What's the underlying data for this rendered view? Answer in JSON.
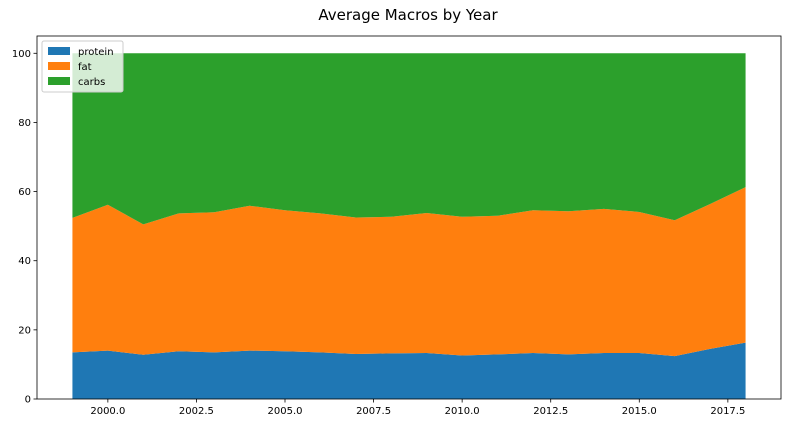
{
  "chart_data": {
    "type": "area",
    "stacked": true,
    "title": "Average Macros by Year",
    "xlabel": "",
    "ylabel": "",
    "xlim": [
      1998,
      2019
    ],
    "ylim": [
      0,
      105
    ],
    "xticks": [
      2000.0,
      2002.5,
      2005.0,
      2007.5,
      2010.0,
      2012.5,
      2015.0,
      2017.5
    ],
    "xtick_labels": [
      "2000.0",
      "2002.5",
      "2005.0",
      "2007.5",
      "2010.0",
      "2012.5",
      "2015.0",
      "2017.5"
    ],
    "yticks": [
      0,
      20,
      40,
      60,
      80,
      100
    ],
    "ytick_labels": [
      "0",
      "20",
      "40",
      "60",
      "80",
      "100"
    ],
    "grid": false,
    "legend_position": "top-left",
    "x": [
      1999,
      2000,
      2001,
      2002,
      2003,
      2004,
      2005,
      2006,
      2007,
      2008,
      2009,
      2010,
      2011,
      2012,
      2013,
      2014,
      2015,
      2016,
      2017,
      2018
    ],
    "series": [
      {
        "name": "protein",
        "color": "#1f77b4",
        "values": [
          13.5,
          14.0,
          12.8,
          13.8,
          13.5,
          14.0,
          13.8,
          13.5,
          13.0,
          13.2,
          13.3,
          12.6,
          12.9,
          13.3,
          12.9,
          13.3,
          13.3,
          12.4,
          14.5,
          16.3
        ]
      },
      {
        "name": "fat",
        "color": "#ff7f0e",
        "values": [
          38.9,
          42.2,
          37.7,
          39.9,
          40.5,
          41.9,
          40.8,
          40.2,
          39.5,
          39.5,
          40.5,
          40.1,
          40.1,
          41.3,
          41.4,
          41.7,
          40.8,
          39.3,
          41.9,
          45.0
        ]
      },
      {
        "name": "carbs",
        "color": "#2ca02c",
        "values": [
          47.6,
          43.8,
          49.5,
          46.3,
          46.0,
          44.1,
          45.4,
          46.3,
          47.5,
          47.3,
          46.2,
          47.3,
          47.0,
          45.4,
          45.7,
          45.0,
          45.9,
          48.3,
          43.6,
          38.7
        ]
      }
    ]
  }
}
